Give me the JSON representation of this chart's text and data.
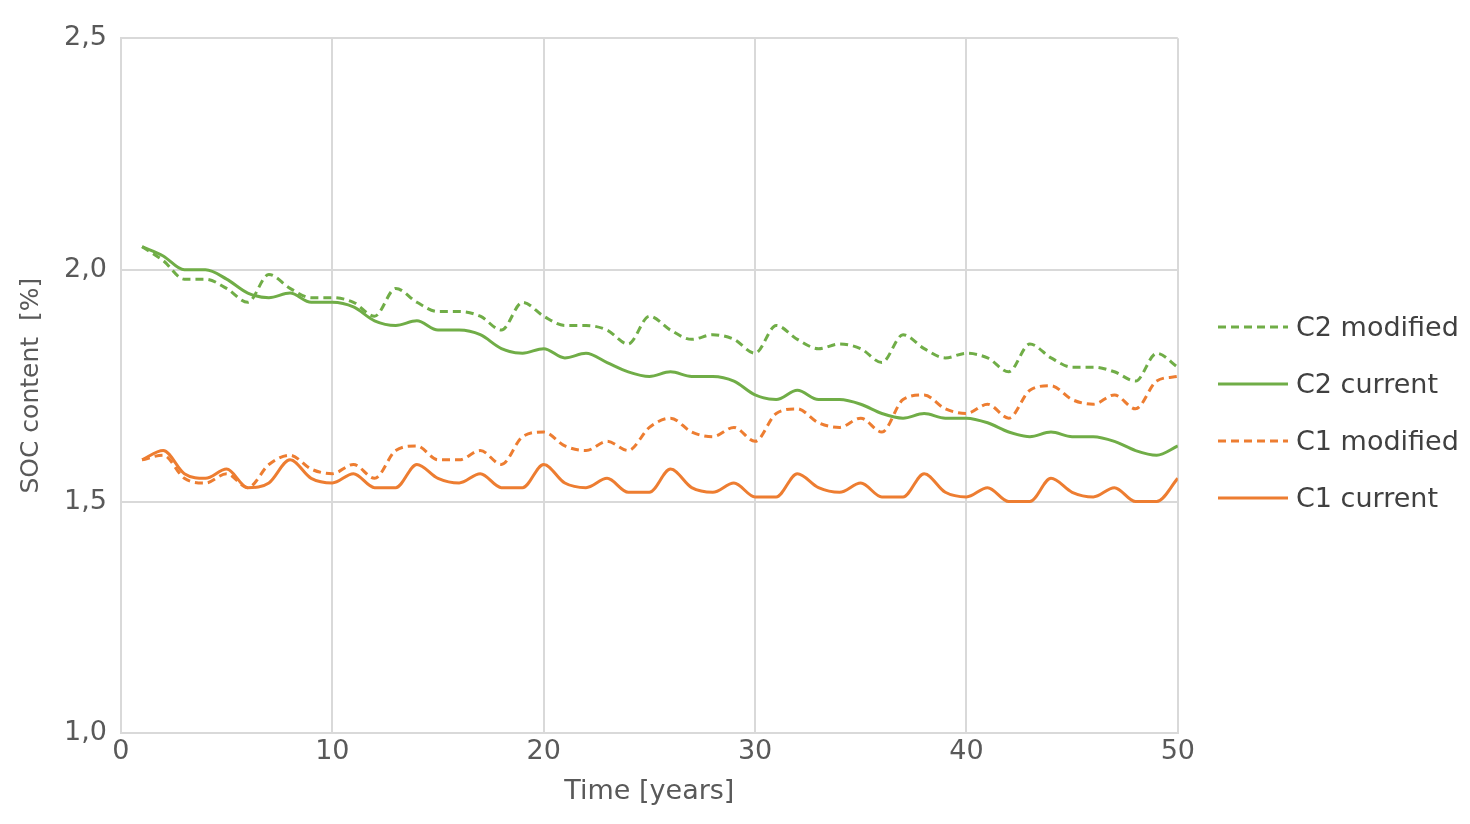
{
  "chart_data": {
    "type": "line",
    "xlabel": "Time [years]",
    "ylabel": "SOC content  [%]",
    "x": [
      1,
      2,
      3,
      4,
      5,
      6,
      7,
      8,
      9,
      10,
      11,
      12,
      13,
      14,
      15,
      16,
      17,
      18,
      19,
      20,
      21,
      22,
      23,
      24,
      25,
      26,
      27,
      28,
      29,
      30,
      31,
      32,
      33,
      34,
      35,
      36,
      37,
      38,
      39,
      40,
      41,
      42,
      43,
      44,
      45,
      46,
      47,
      48,
      49,
      50
    ],
    "series": [
      {
        "name": "C2 modified",
        "color": "#70ad47",
        "line_style": "dashed",
        "values": [
          2.05,
          2.02,
          1.98,
          1.98,
          1.96,
          1.93,
          1.99,
          1.96,
          1.94,
          1.94,
          1.93,
          1.9,
          1.96,
          1.93,
          1.91,
          1.91,
          1.9,
          1.87,
          1.93,
          1.9,
          1.88,
          1.88,
          1.87,
          1.84,
          1.9,
          1.87,
          1.85,
          1.86,
          1.85,
          1.82,
          1.88,
          1.85,
          1.83,
          1.84,
          1.83,
          1.8,
          1.86,
          1.83,
          1.81,
          1.82,
          1.81,
          1.78,
          1.84,
          1.81,
          1.79,
          1.79,
          1.78,
          1.76,
          1.82,
          1.79
        ]
      },
      {
        "name": "C2 current",
        "color": "#70ad47",
        "line_style": "solid",
        "values": [
          2.05,
          2.03,
          2.0,
          2.0,
          1.98,
          1.95,
          1.94,
          1.95,
          1.93,
          1.93,
          1.92,
          1.89,
          1.88,
          1.89,
          1.87,
          1.87,
          1.86,
          1.83,
          1.82,
          1.83,
          1.81,
          1.82,
          1.8,
          1.78,
          1.77,
          1.78,
          1.77,
          1.77,
          1.76,
          1.73,
          1.72,
          1.74,
          1.72,
          1.72,
          1.71,
          1.69,
          1.68,
          1.69,
          1.68,
          1.68,
          1.67,
          1.65,
          1.64,
          1.65,
          1.64,
          1.64,
          1.63,
          1.61,
          1.6,
          1.62
        ]
      },
      {
        "name": "C1 modified",
        "color": "#ed7d31",
        "line_style": "dashed",
        "values": [
          1.59,
          1.6,
          1.55,
          1.54,
          1.56,
          1.53,
          1.58,
          1.6,
          1.57,
          1.56,
          1.58,
          1.55,
          1.61,
          1.62,
          1.59,
          1.59,
          1.61,
          1.58,
          1.64,
          1.65,
          1.62,
          1.61,
          1.63,
          1.61,
          1.66,
          1.68,
          1.65,
          1.64,
          1.66,
          1.63,
          1.69,
          1.7,
          1.67,
          1.66,
          1.68,
          1.65,
          1.72,
          1.73,
          1.7,
          1.69,
          1.71,
          1.68,
          1.74,
          1.75,
          1.72,
          1.71,
          1.73,
          1.7,
          1.76,
          1.77
        ]
      },
      {
        "name": "C1 current",
        "color": "#ed7d31",
        "line_style": "solid",
        "values": [
          1.59,
          1.61,
          1.56,
          1.55,
          1.57,
          1.53,
          1.54,
          1.59,
          1.55,
          1.54,
          1.56,
          1.53,
          1.53,
          1.58,
          1.55,
          1.54,
          1.56,
          1.53,
          1.53,
          1.58,
          1.54,
          1.53,
          1.55,
          1.52,
          1.52,
          1.57,
          1.53,
          1.52,
          1.54,
          1.51,
          1.51,
          1.56,
          1.53,
          1.52,
          1.54,
          1.51,
          1.51,
          1.56,
          1.52,
          1.51,
          1.53,
          1.5,
          1.5,
          1.55,
          1.52,
          1.51,
          1.53,
          1.5,
          1.5,
          1.55
        ]
      }
    ],
    "xlim": [
      0,
      50
    ],
    "xticks": [
      0,
      10,
      20,
      30,
      40,
      50
    ],
    "ylim": [
      1.0,
      2.5
    ],
    "yticks": [
      {
        "value": 1.0,
        "label": "1,0"
      },
      {
        "value": 1.5,
        "label": "1,5"
      },
      {
        "value": 2.0,
        "label": "2,0"
      },
      {
        "value": 2.5,
        "label": "2,5"
      }
    ],
    "grid": true,
    "legend": "right",
    "marker": "none"
  }
}
